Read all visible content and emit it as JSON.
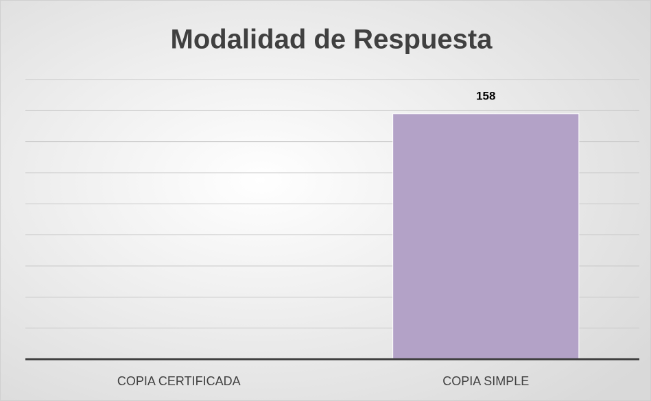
{
  "chart_data": {
    "type": "bar",
    "title": "Modalidad de Respuesta",
    "categories": [
      "COPIA CERTIFICADA",
      "COPIA SIMPLE"
    ],
    "values": [
      0,
      158
    ],
    "value_labels": [
      null,
      "158"
    ],
    "color": "#b3a2c7",
    "ylim": [
      0,
      180
    ],
    "yticks": [
      0,
      20,
      40,
      60,
      80,
      100,
      120,
      140,
      160,
      180
    ],
    "grid": true
  }
}
